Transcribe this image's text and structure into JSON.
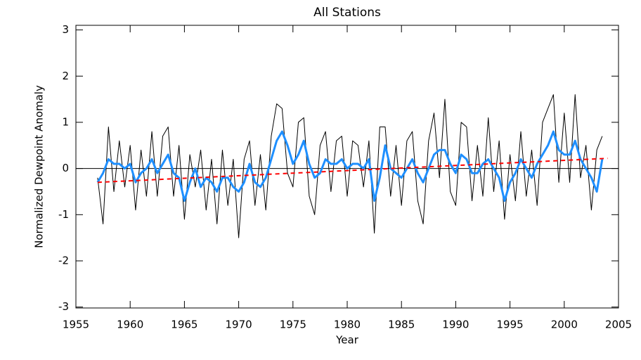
{
  "chart_data": {
    "type": "line",
    "title": "All Stations",
    "x_label": "Year",
    "y_label": "Normalized Dewpoint Anomaly",
    "xlim": [
      1955,
      2005
    ],
    "xticks": [
      1955,
      1960,
      1965,
      1970,
      1975,
      1980,
      1985,
      1990,
      1995,
      2000,
      2005
    ],
    "ylim": [
      -3.02,
      3.1
    ],
    "yticks": [
      -3,
      -2,
      -1,
      0,
      1,
      2,
      3
    ],
    "x": [
      1957,
      1957.5,
      1958,
      1958.5,
      1959,
      1959.5,
      1960,
      1960.5,
      1961,
      1961.5,
      1962,
      1962.5,
      1963,
      1963.5,
      1964,
      1964.5,
      1965,
      1965.5,
      1966,
      1966.5,
      1967,
      1967.5,
      1968,
      1968.5,
      1969,
      1969.5,
      1970,
      1970.5,
      1971,
      1971.5,
      1972,
      1972.5,
      1973,
      1973.5,
      1974,
      1974.5,
      1975,
      1975.5,
      1976,
      1976.5,
      1977,
      1977.5,
      1978,
      1978.5,
      1979,
      1979.5,
      1980,
      1980.5,
      1981,
      1981.5,
      1982,
      1982.5,
      1983,
      1983.5,
      1984,
      1984.5,
      1985,
      1985.5,
      1986,
      1986.5,
      1987,
      1987.5,
      1988,
      1988.5,
      1989,
      1989.5,
      1990,
      1990.5,
      1991,
      1991.5,
      1992,
      1992.5,
      1993,
      1993.5,
      1994,
      1994.5,
      1995,
      1995.5,
      1996,
      1996.5,
      1997,
      1997.5,
      1998,
      1998.5,
      1999,
      1999.5,
      2000,
      2000.5,
      2001,
      2001.5,
      2002,
      2002.5,
      2003,
      2003.5
    ],
    "series": [
      {
        "color": "#000000",
        "width": 1,
        "values": [
          -0.2,
          -1.2,
          0.9,
          -0.5,
          0.6,
          -0.4,
          0.5,
          -0.9,
          0.4,
          -0.6,
          0.8,
          -0.6,
          0.7,
          0.9,
          -0.6,
          0.5,
          -1.1,
          0.3,
          -0.4,
          0.4,
          -0.9,
          0.2,
          -1.2,
          0.4,
          -0.8,
          0.2,
          -1.5,
          0.2,
          0.6,
          -0.8,
          0.3,
          -0.9,
          0.7,
          1.4,
          1.3,
          -0.1,
          -0.4,
          1.0,
          1.1,
          -0.6,
          -1.0,
          0.5,
          0.8,
          -0.5,
          0.6,
          0.7,
          -0.6,
          0.6,
          0.5,
          -0.4,
          0.6,
          -1.4,
          0.9,
          0.9,
          -0.6,
          0.5,
          -0.8,
          0.6,
          0.8,
          -0.7,
          -1.2,
          0.6,
          1.2,
          -0.2,
          1.5,
          -0.5,
          -0.8,
          1.0,
          0.9,
          -0.7,
          0.5,
          -0.6,
          1.1,
          -0.5,
          0.6,
          -1.1,
          0.3,
          -0.7,
          0.8,
          -0.6,
          0.4,
          -0.8,
          1.0,
          1.3,
          1.6,
          -0.3,
          1.2,
          -0.3,
          1.6,
          -0.2,
          0.5,
          -0.9,
          0.4,
          0.7
        ]
      },
      {
        "color": "#1e8fff",
        "width": 3,
        "values": [
          -0.3,
          -0.1,
          0.2,
          0.1,
          0.1,
          0.0,
          0.1,
          -0.3,
          -0.1,
          0.0,
          0.2,
          -0.1,
          0.1,
          0.3,
          -0.1,
          -0.2,
          -0.7,
          -0.3,
          0.0,
          -0.4,
          -0.2,
          -0.3,
          -0.5,
          -0.2,
          -0.2,
          -0.4,
          -0.5,
          -0.3,
          0.1,
          -0.3,
          -0.4,
          -0.2,
          0.2,
          0.6,
          0.8,
          0.5,
          0.1,
          0.3,
          0.6,
          0.1,
          -0.2,
          -0.1,
          0.2,
          0.1,
          0.1,
          0.2,
          0.0,
          0.1,
          0.1,
          0.0,
          0.2,
          -0.7,
          -0.2,
          0.5,
          0.0,
          -0.1,
          -0.2,
          0.0,
          0.2,
          -0.1,
          -0.3,
          0.0,
          0.3,
          0.4,
          0.4,
          0.1,
          -0.1,
          0.3,
          0.2,
          -0.1,
          -0.1,
          0.1,
          0.2,
          0.0,
          -0.2,
          -0.7,
          -0.3,
          -0.1,
          0.2,
          0.0,
          -0.2,
          0.1,
          0.3,
          0.5,
          0.8,
          0.4,
          0.3,
          0.3,
          0.6,
          0.2,
          0.0,
          -0.2,
          -0.5,
          0.2
        ]
      },
      {
        "color": "#ff0000",
        "width": 2,
        "dashed": true,
        "x": [
          1957,
          2004
        ],
        "values": [
          -0.3,
          0.22
        ]
      }
    ]
  }
}
